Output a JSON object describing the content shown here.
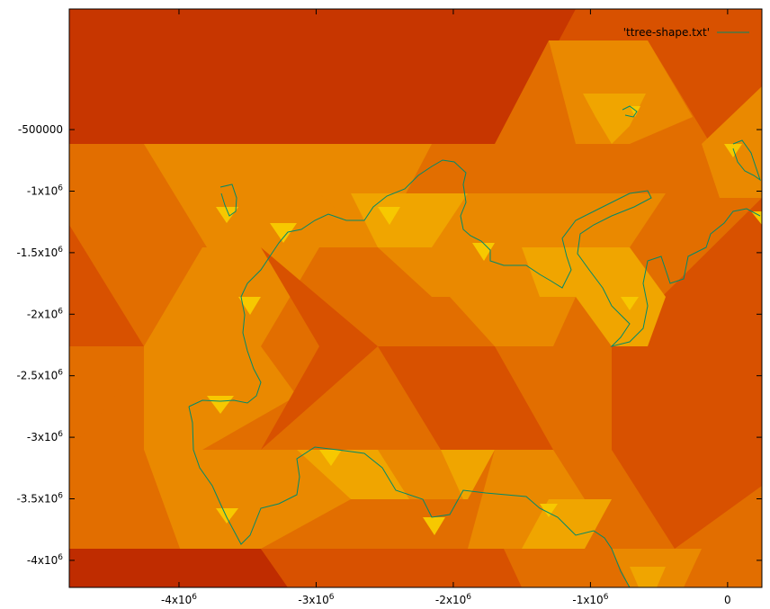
{
  "chart_data": {
    "type": "heatmap",
    "title": "",
    "xlabel": "",
    "ylabel": "",
    "xlim": [
      -4800000,
      250000
    ],
    "ylim": [
      -4220000,
      480000
    ],
    "x_ticks": [
      {
        "value": -4000000,
        "label": "-4x10",
        "exp": "6"
      },
      {
        "value": -3000000,
        "label": "-3x10",
        "exp": "6"
      },
      {
        "value": -2000000,
        "label": "-2x10",
        "exp": "6"
      },
      {
        "value": -1000000,
        "label": "-1x10",
        "exp": "6"
      },
      {
        "value": 0,
        "label": "0",
        "exp": ""
      }
    ],
    "y_ticks": [
      {
        "value": -500000,
        "label": "-500000",
        "exp": ""
      },
      {
        "value": -1000000,
        "label": "-1x10",
        "exp": "6"
      },
      {
        "value": -1500000,
        "label": "-1.5x10",
        "exp": "6"
      },
      {
        "value": -2000000,
        "label": "-2x10",
        "exp": "6"
      },
      {
        "value": -2500000,
        "label": "-2.5x10",
        "exp": "6"
      },
      {
        "value": -3000000,
        "label": "-3x10",
        "exp": "6"
      },
      {
        "value": -3500000,
        "label": "-3.5x10",
        "exp": "6"
      },
      {
        "value": -4000000,
        "label": "-4x10",
        "exp": "6"
      }
    ],
    "legend": {
      "label": "'ttree-shape.txt'",
      "position": "top-right"
    },
    "grid": false,
    "colors": {
      "background_dark": "#c73600",
      "level_1": "#d85100",
      "level_2": "#e26e00",
      "level_3": "#ea8900",
      "level_4": "#f0a500",
      "level_5": "#f7c800",
      "series_line": "#008a6a"
    }
  }
}
